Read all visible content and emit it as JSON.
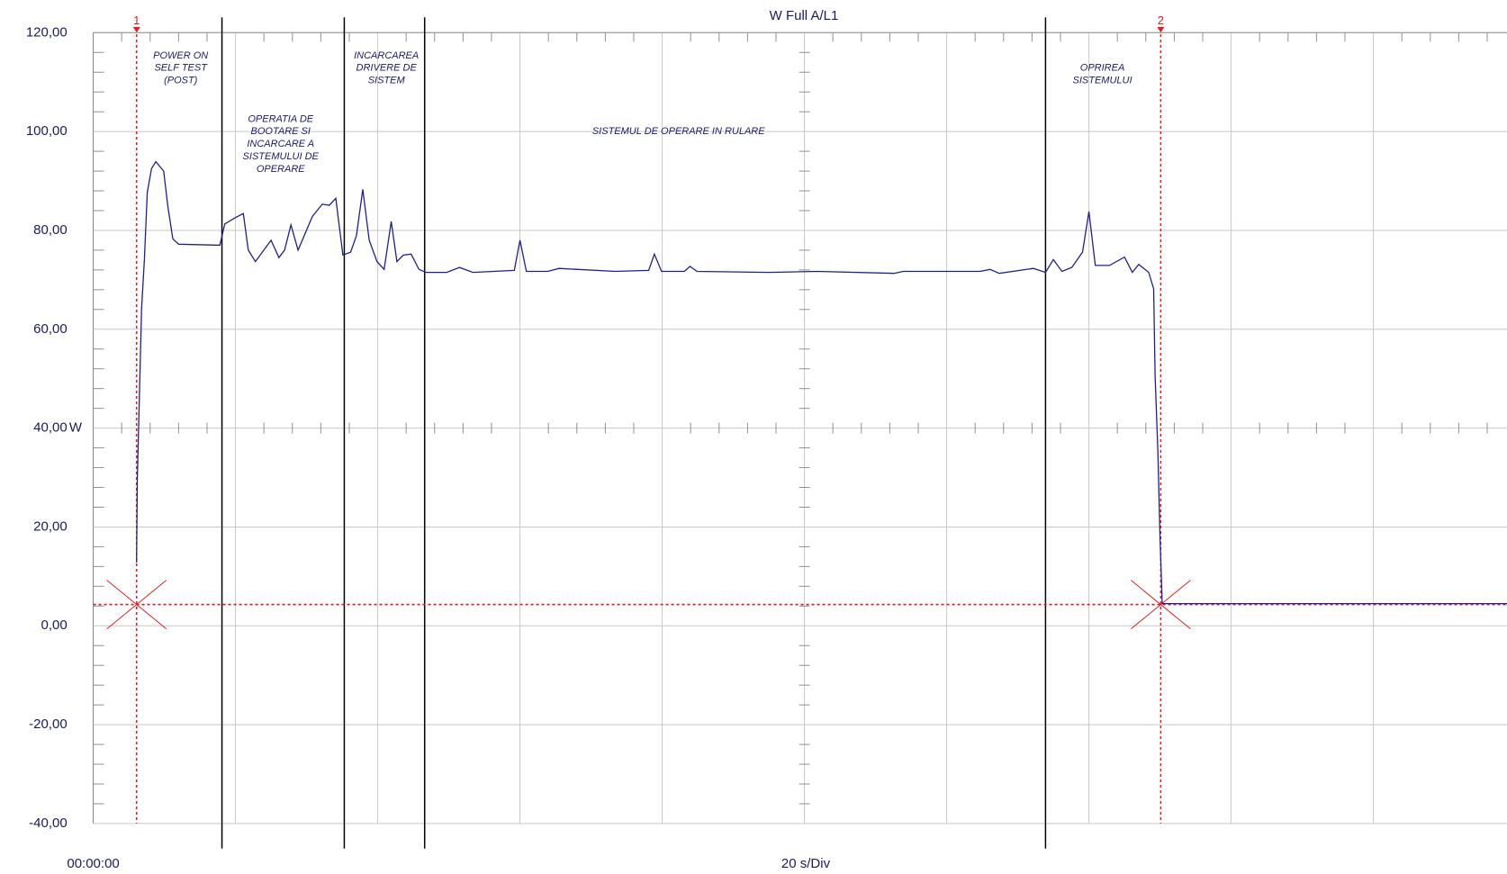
{
  "chart_data": {
    "type": "line",
    "title": "W Full A/L1",
    "x_label": "20 s/Div",
    "y_unit": "W",
    "color": "#20208c",
    "cursor_color": "#e02020",
    "xlim": [
      0,
      200
    ],
    "xticks": [
      {
        "value": 0,
        "label": "00:00:00"
      },
      20,
      40,
      60,
      80,
      100,
      120,
      140,
      160,
      180,
      200
    ],
    "ylim": [
      -40,
      120
    ],
    "yticks": [
      {
        "value": -40,
        "label": "-40,00"
      },
      {
        "value": -20,
        "label": "-20,00"
      },
      {
        "value": 0,
        "label": "0,00"
      },
      {
        "value": 20,
        "label": "20,00"
      },
      {
        "value": 40,
        "label": "40,00"
      },
      {
        "value": 60,
        "label": "60,00"
      },
      {
        "value": 80,
        "label": "80,00"
      },
      {
        "value": 100,
        "label": "100,00"
      },
      {
        "value": 120,
        "label": "120,00"
      }
    ],
    "grid": true,
    "x": [
      6.1,
      6.2,
      6.5,
      6.8,
      7.2,
      7.6,
      8.2,
      8.8,
      9.9,
      10.5,
      11.2,
      12.0,
      17.8,
      18.5,
      20.0,
      21.1,
      21.8,
      22.8,
      25.0,
      26.1,
      26.9,
      27.8,
      28.8,
      30.8,
      32.2,
      33.2,
      34.1,
      35.1,
      36.2,
      37.0,
      37.9,
      38.8,
      39.9,
      40.9,
      41.9,
      42.7,
      43.6,
      44.7,
      45.8,
      46.8,
      49.7,
      51.5,
      53.4,
      59.2,
      60.0,
      60.9,
      63.9,
      65.5,
      73.4,
      78.1,
      78.9,
      79.9,
      83.1,
      83.9,
      84.9,
      95.0,
      101.8,
      112.6,
      113.9,
      124.7,
      126.1,
      127.4,
      132.2,
      133.9,
      135.0,
      136.2,
      137.6,
      139.1,
      140.0,
      140.9,
      142.9,
      145.0,
      146.1,
      147.0,
      148.4,
      149.1,
      149.3,
      149.7,
      150.0,
      150.3,
      198.8
    ],
    "values": [
      12.8,
      29.4,
      46.9,
      64.3,
      74.1,
      87.7,
      92.5,
      93.9,
      92.0,
      84.8,
      78.3,
      77.2,
      77.0,
      81.3,
      82.6,
      83.4,
      76.0,
      73.7,
      78.0,
      74.5,
      76.0,
      81.1,
      76.0,
      82.8,
      85.3,
      85.1,
      86.5,
      75.0,
      75.6,
      78.9,
      88.3,
      78.0,
      73.7,
      72.1,
      81.8,
      73.7,
      75.0,
      75.2,
      72.1,
      71.5,
      71.5,
      72.5,
      71.5,
      71.9,
      78.0,
      71.7,
      71.7,
      72.3,
      71.7,
      71.9,
      75.2,
      71.7,
      71.7,
      72.7,
      71.7,
      71.5,
      71.7,
      71.3,
      71.7,
      71.7,
      72.1,
      71.3,
      72.3,
      71.5,
      74.1,
      71.7,
      72.5,
      75.6,
      83.8,
      72.9,
      72.9,
      74.6,
      71.5,
      73.1,
      71.5,
      68.2,
      50.7,
      35.2,
      17.7,
      4.5,
      4.5
    ],
    "cursors": [
      {
        "label": "1",
        "x": 6.1,
        "y": 4.3
      },
      {
        "label": "2",
        "x": 150.1,
        "y": 4.3
      }
    ],
    "phase_boundaries": [
      18.1,
      35.3,
      46.6,
      133.9
    ],
    "annotations": [
      {
        "lines": [
          "POWER ON",
          "SELF TEST",
          "(POST)"
        ]
      },
      {
        "lines": [
          "OPERATIA DE",
          "BOOTARE SI",
          "INCARCARE A",
          "SISTEMULUI DE",
          "OPERARE"
        ]
      },
      {
        "lines": [
          "INCARCAREA",
          "DRIVERE DE",
          "SISTEM"
        ]
      },
      {
        "lines": [
          "SISTEMUL DE OPERARE IN RULARE"
        ]
      },
      {
        "lines": [
          "OPRIREA",
          "SISTEMULUI"
        ]
      }
    ]
  }
}
